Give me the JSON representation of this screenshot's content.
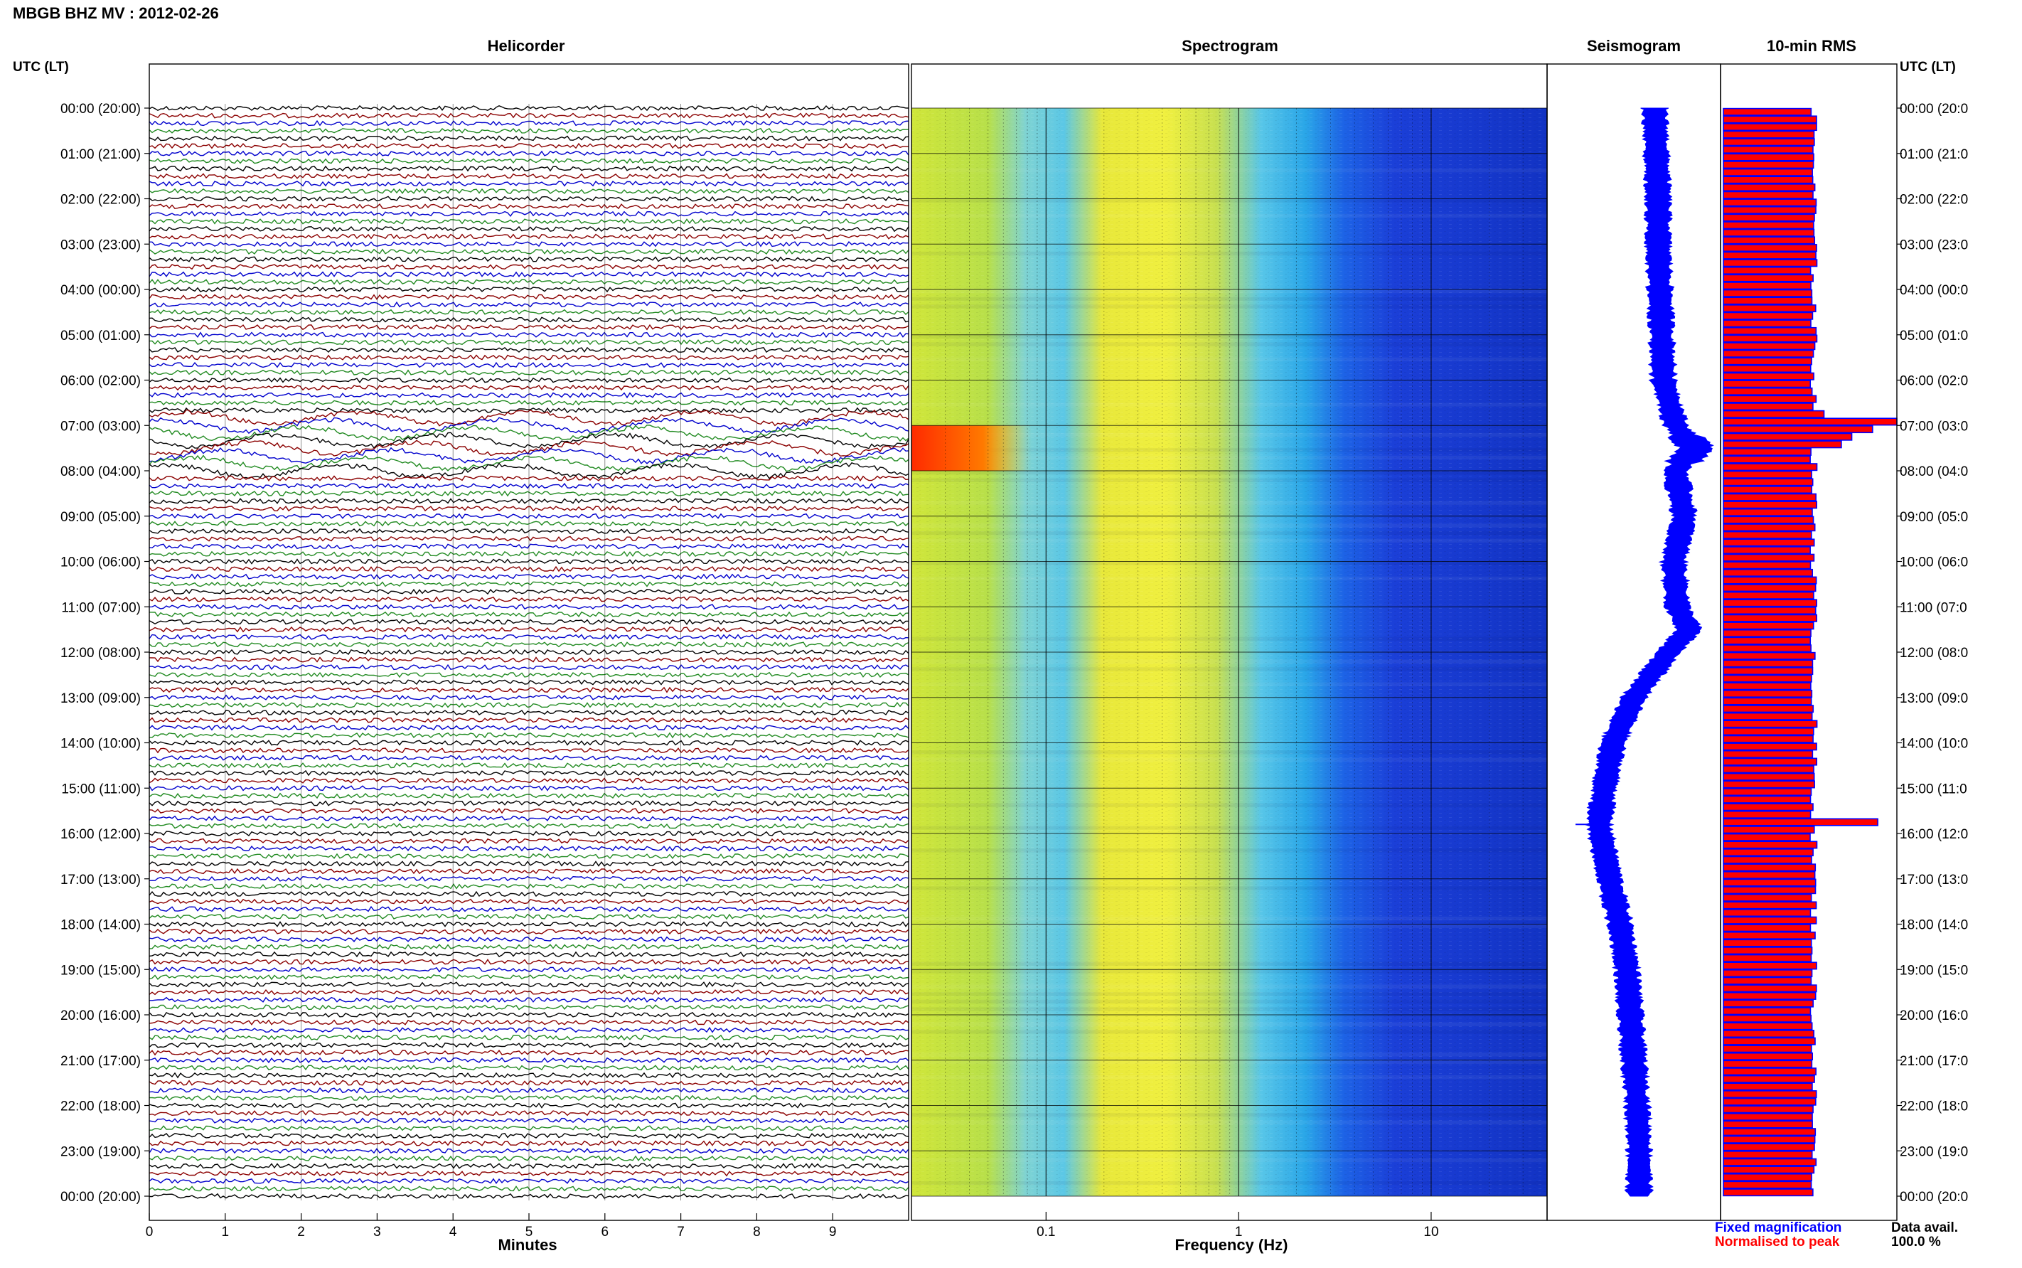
{
  "header": {
    "title": "MBGB BHZ MV : 2012-02-26",
    "left_axis_caption": "UTC (LT)",
    "right_axis_caption": "UTC (LT)"
  },
  "panels": {
    "helicorder": "Helicorder",
    "spectrogram": "Spectrogram",
    "seismogram": "Seismogram",
    "rms": "10-min RMS"
  },
  "time_labels": [
    "00:00 (20:00)",
    "01:00 (21:00)",
    "02:00 (22:00)",
    "03:00 (23:00)",
    "04:00 (00:00)",
    "05:00 (01:00)",
    "06:00 (02:00)",
    "07:00 (03:00)",
    "08:00 (04:00)",
    "09:00 (05:00)",
    "10:00 (06:00)",
    "11:00 (07:00)",
    "12:00 (08:00)",
    "13:00 (09:00)",
    "14:00 (10:00)",
    "15:00 (11:00)",
    "16:00 (12:00)",
    "17:00 (13:00)",
    "18:00 (14:00)",
    "19:00 (15:00)",
    "20:00 (16:00)",
    "21:00 (17:00)",
    "22:00 (18:00)",
    "23:00 (19:00)",
    "00:00 (20:00)"
  ],
  "right_time_labels": [
    "00:00 (20:0",
    "01:00 (21:0",
    "02:00 (22:0",
    "03:00 (23:0",
    "04:00 (00:0",
    "05:00 (01:0",
    "06:00 (02:0",
    "07:00 (03:0",
    "08:00 (04:0",
    "09:00 (05:0",
    "10:00 (06:0",
    "11:00 (07:0",
    "12:00 (08:0",
    "13:00 (09:0",
    "14:00 (10:0",
    "15:00 (11:0",
    "16:00 (12:0",
    "17:00 (13:0",
    "18:00 (14:0",
    "19:00 (15:0",
    "20:00 (16:0",
    "21:00 (17:0",
    "22:00 (18:0",
    "23:00 (19:0",
    "00:00 (20:0"
  ],
  "legend": {
    "fixed": "Fixed magnification",
    "normalised": "Normalised to peak",
    "fixed_color": "#0000ff",
    "normalised_color": "#ff0000"
  },
  "footer": {
    "data_avail_label": "Data avail.",
    "data_avail_value": "100.0 %"
  },
  "colors": {
    "trace_cycle": [
      "#000000",
      "#8b0000",
      "#0000cd",
      "#228b22"
    ],
    "seismogram": "#0000ff",
    "rms_fill": "#ff0000",
    "rms_edge": "#0000ff"
  },
  "chart_data": [
    {
      "type": "line",
      "title": "Helicorder",
      "xlabel": "Minutes",
      "xlim": [
        0,
        10
      ],
      "xticks": [
        "0",
        "1",
        "2",
        "3",
        "4",
        "5",
        "6",
        "7",
        "8",
        "9"
      ],
      "rows_per_hour": 6,
      "y_labels_every": "1 hour",
      "ylim_hours": [
        0,
        24
      ],
      "notable_events": [
        {
          "hour_utc": 7.2,
          "description_level": "long-period oscillation"
        },
        {
          "hour_utc": 15.9,
          "description_level": "transient"
        }
      ]
    },
    {
      "type": "heatmap",
      "title": "Spectrogram",
      "xlabel": "Frequency (Hz)",
      "xscale": "log",
      "xlim": [
        0.02,
        40
      ],
      "xticks": [
        "0.1",
        "1",
        "10"
      ],
      "ylim_hours": [
        0,
        24
      ],
      "energy_by_frequency": [
        {
          "f": 0.02,
          "level": 0.55
        },
        {
          "f": 0.05,
          "level": 0.55
        },
        {
          "f": 0.08,
          "level": 0.4
        },
        {
          "f": 0.12,
          "level": 0.38
        },
        {
          "f": 0.2,
          "level": 0.62
        },
        {
          "f": 0.35,
          "level": 0.65
        },
        {
          "f": 0.6,
          "level": 0.55
        },
        {
          "f": 1.0,
          "level": 0.42
        },
        {
          "f": 1.8,
          "level": 0.32
        },
        {
          "f": 3.0,
          "level": 0.18
        },
        {
          "f": 6.0,
          "level": 0.12
        },
        {
          "f": 10,
          "level": 0.1
        },
        {
          "f": 40,
          "level": 0.08
        }
      ],
      "hotspot": {
        "f_range": [
          0.02,
          0.065
        ],
        "hours": [
          7.0,
          8.0
        ]
      }
    },
    {
      "type": "line",
      "title": "Seismogram",
      "ylim_hours": [
        0,
        24
      ],
      "center_offset_by_hour": [
        {
          "h": 0,
          "v": 0.62
        },
        {
          "h": 1,
          "v": 0.63
        },
        {
          "h": 2,
          "v": 0.64
        },
        {
          "h": 3,
          "v": 0.64
        },
        {
          "h": 4,
          "v": 0.65
        },
        {
          "h": 5,
          "v": 0.66
        },
        {
          "h": 6,
          "v": 0.67
        },
        {
          "h": 7,
          "v": 0.74
        },
        {
          "h": 7.5,
          "v": 0.86
        },
        {
          "h": 8,
          "v": 0.74
        },
        {
          "h": 9,
          "v": 0.79
        },
        {
          "h": 10,
          "v": 0.73
        },
        {
          "h": 11,
          "v": 0.75
        },
        {
          "h": 11.5,
          "v": 0.82
        },
        {
          "h": 12,
          "v": 0.7
        },
        {
          "h": 13,
          "v": 0.5
        },
        {
          "h": 14,
          "v": 0.38
        },
        {
          "h": 15,
          "v": 0.33
        },
        {
          "h": 15.8,
          "v": 0.3
        },
        {
          "h": 17,
          "v": 0.36
        },
        {
          "h": 18,
          "v": 0.42
        },
        {
          "h": 19,
          "v": 0.46
        },
        {
          "h": 20,
          "v": 0.48
        },
        {
          "h": 21,
          "v": 0.5
        },
        {
          "h": 22,
          "v": 0.52
        },
        {
          "h": 23,
          "v": 0.53
        },
        {
          "h": 24,
          "v": 0.53
        }
      ]
    },
    {
      "type": "bar",
      "title": "10-min RMS",
      "orientation": "horizontal",
      "bins": 144,
      "series": [
        {
          "name": "Fixed magnification"
        },
        {
          "name": "Normalised to peak"
        }
      ],
      "baseline_level": 0.52,
      "peaks": [
        {
          "bin": 41,
          "level": 1.0
        },
        {
          "bin": 42,
          "level": 0.86
        },
        {
          "bin": 43,
          "level": 0.74
        },
        {
          "bin": 44,
          "level": 0.68
        },
        {
          "bin": 40,
          "level": 0.58
        },
        {
          "bin": 94,
          "level": 0.89
        }
      ]
    }
  ]
}
